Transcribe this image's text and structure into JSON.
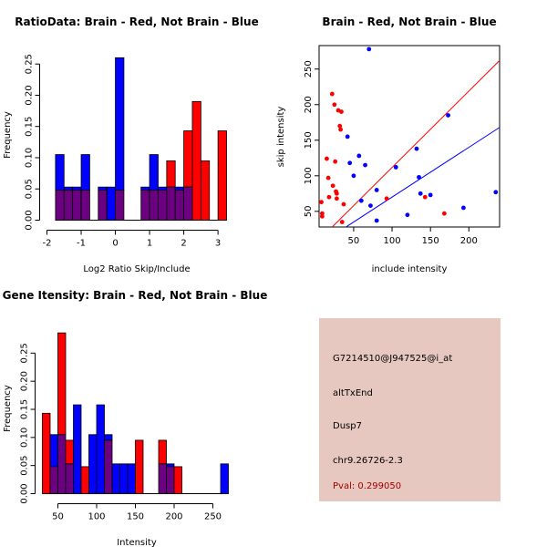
{
  "chart_data": [
    {
      "type": "bar",
      "title": "RatioData: Brain - Red, Not Brain - Blue",
      "xlabel": "Log2 Ratio Skip/Include",
      "ylabel": "Frequency",
      "xlim": [
        -2,
        3.25
      ],
      "ylim": [
        0,
        0.27
      ],
      "xticks": [
        -2,
        -1,
        0,
        1,
        2,
        3
      ],
      "yticks": [
        0.0,
        0.05,
        0.1,
        0.15,
        0.2,
        0.25
      ],
      "ytick_labels": [
        "0.00",
        "0.05",
        "0.10",
        "0.15",
        "0.20",
        "0.25"
      ],
      "bin_width": 0.25,
      "series": [
        {
          "name": "Not Brain",
          "color": "#0000ff",
          "bins": [
            [
              -1.75,
              0.105
            ],
            [
              -1.5,
              0.053
            ],
            [
              -1.25,
              0.053
            ],
            [
              -1.0,
              0.105
            ],
            [
              -0.5,
              0.053
            ],
            [
              -0.25,
              0.053
            ],
            [
              0.0,
              0.26
            ],
            [
              0.75,
              0.053
            ],
            [
              1.0,
              0.105
            ],
            [
              1.25,
              0.053
            ],
            [
              1.5,
              0.053
            ],
            [
              1.75,
              0.053
            ],
            [
              2.0,
              0.053
            ]
          ]
        },
        {
          "name": "Brain",
          "color": "#ff0000",
          "bins": [
            [
              -1.75,
              0.048
            ],
            [
              -1.5,
              0.048
            ],
            [
              -1.25,
              0.048
            ],
            [
              -1.0,
              0.048
            ],
            [
              -0.5,
              0.048
            ],
            [
              0.0,
              0.048
            ],
            [
              0.75,
              0.048
            ],
            [
              1.0,
              0.048
            ],
            [
              1.25,
              0.048
            ],
            [
              1.5,
              0.095
            ],
            [
              1.75,
              0.048
            ],
            [
              2.0,
              0.143
            ],
            [
              2.25,
              0.19
            ],
            [
              2.5,
              0.095
            ],
            [
              3.0,
              0.143
            ]
          ]
        }
      ],
      "overlap_color": "#6b0080"
    },
    {
      "type": "scatter",
      "title": "Brain - Red, Not Brain - Blue",
      "xlabel": "include intensity",
      "ylabel": "skip intensity",
      "xlim": [
        5,
        240
      ],
      "ylim": [
        28,
        283
      ],
      "xticks": [
        50,
        100,
        150,
        200
      ],
      "yticks": [
        50,
        100,
        150,
        200,
        250
      ],
      "series": [
        {
          "name": "Brain",
          "color": "#ff0000",
          "points": [
            [
              8,
              63
            ],
            [
              9,
              47
            ],
            [
              9,
              43
            ],
            [
              15,
              124
            ],
            [
              17,
              97
            ],
            [
              18,
              70
            ],
            [
              22,
              215
            ],
            [
              23,
              86
            ],
            [
              25,
              200
            ],
            [
              26,
              120
            ],
            [
              27,
              78
            ],
            [
              28,
              75
            ],
            [
              28,
              68
            ],
            [
              30,
              192
            ],
            [
              32,
              170
            ],
            [
              33,
              165
            ],
            [
              34,
              190
            ],
            [
              35,
              35
            ],
            [
              37,
              60
            ],
            [
              93,
              68
            ],
            [
              143,
              70
            ],
            [
              168,
              47
            ]
          ]
        },
        {
          "name": "Not Brain",
          "color": "#0000ff",
          "points": [
            [
              70,
              278
            ],
            [
              42,
              155
            ],
            [
              45,
              118
            ],
            [
              50,
              100
            ],
            [
              57,
              128
            ],
            [
              60,
              65
            ],
            [
              65,
              115
            ],
            [
              72,
              58
            ],
            [
              80,
              80
            ],
            [
              80,
              37
            ],
            [
              105,
              112
            ],
            [
              120,
              45
            ],
            [
              132,
              138
            ],
            [
              135,
              98
            ],
            [
              137,
              75
            ],
            [
              150,
              73
            ],
            [
              173,
              185
            ],
            [
              193,
              55
            ],
            [
              235,
              77
            ]
          ]
        }
      ],
      "lines": [
        {
          "color": "#ff0000",
          "from": [
            22,
            28
          ],
          "to": [
            240,
            262
          ]
        },
        {
          "color": "#0000ff",
          "from": [
            40,
            28
          ],
          "to": [
            240,
            168
          ]
        }
      ]
    },
    {
      "type": "bar",
      "title": "Gene Itensity: Brain - Red, Not Brain - Blue",
      "xlabel": "Intensity",
      "ylabel": "Frequency",
      "xlim": [
        30,
        280
      ],
      "ylim": [
        0,
        0.3
      ],
      "xticks": [
        50,
        100,
        150,
        200,
        250
      ],
      "yticks": [
        0.0,
        0.05,
        0.1,
        0.15,
        0.2,
        0.25
      ],
      "ytick_labels": [
        "0.00",
        "0.05",
        "0.10",
        "0.15",
        "0.20",
        "0.25"
      ],
      "bin_width": 10,
      "series": [
        {
          "name": "Not Brain",
          "color": "#0000ff",
          "bins": [
            [
              40,
              0.105
            ],
            [
              50,
              0.105
            ],
            [
              60,
              0.053
            ],
            [
              70,
              0.158
            ],
            [
              90,
              0.105
            ],
            [
              100,
              0.158
            ],
            [
              110,
              0.105
            ],
            [
              120,
              0.053
            ],
            [
              130,
              0.053
            ],
            [
              140,
              0.053
            ],
            [
              180,
              0.053
            ],
            [
              190,
              0.053
            ],
            [
              260,
              0.053
            ]
          ]
        },
        {
          "name": "Brain",
          "color": "#ff0000",
          "bins": [
            [
              30,
              0.143
            ],
            [
              40,
              0.048
            ],
            [
              50,
              0.286
            ],
            [
              60,
              0.095
            ],
            [
              80,
              0.048
            ],
            [
              110,
              0.095
            ],
            [
              150,
              0.095
            ],
            [
              180,
              0.095
            ],
            [
              190,
              0.048
            ],
            [
              200,
              0.048
            ]
          ]
        }
      ],
      "overlap_color": "#6b0080"
    }
  ],
  "info_panel": {
    "background": "#e6c8c0",
    "probe_id": "G7214510@J947525@i_at",
    "event_type": "altTxEnd",
    "gene": "Dusp7",
    "location": "chr9.26726-2.3",
    "pval": "Pval: 0.299050",
    "pval_color": "#a00000"
  }
}
